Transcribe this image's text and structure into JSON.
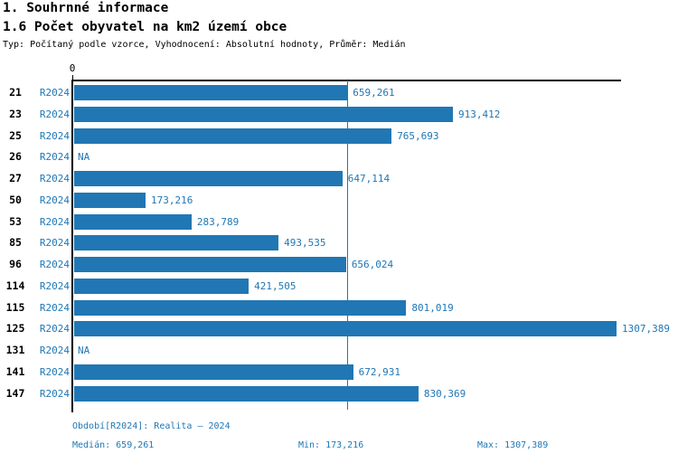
{
  "header": {
    "title_line1": "1. Souhrnné informace",
    "title_line2": "1.6 Počet obyvatel na km2 území obce",
    "subtitle": "Typ: Počítaný podle vzorce, Vyhodnocení: Absolutní hodnoty, Průměr: Medián"
  },
  "chart_data": {
    "type": "bar",
    "orientation": "horizontal",
    "series_label": "R2024",
    "categories": [
      "21",
      "23",
      "25",
      "26",
      "27",
      "50",
      "53",
      "85",
      "96",
      "114",
      "115",
      "125",
      "131",
      "141",
      "147"
    ],
    "values": [
      659.261,
      913.412,
      765.693,
      null,
      647.114,
      173.216,
      283.789,
      493.535,
      656.024,
      421.505,
      801.019,
      1307.389,
      null,
      672.931,
      830.369
    ],
    "value_labels": [
      "659,261",
      "913,412",
      "765,693",
      "NA",
      "647,114",
      "173,216",
      "283,789",
      "493,535",
      "656,024",
      "421,505",
      "801,019",
      "1307,389",
      "NA",
      "672,931",
      "830,369"
    ],
    "na_label": "NA",
    "axis": {
      "zero_label": "0",
      "xmin": 0,
      "xmax": 1307.389
    },
    "median_value": 659.261,
    "grid": false,
    "legend_position": "none",
    "bar_color": "#2077b4",
    "median_line_color": "#1f77b4",
    "label_color": "#1f77b4",
    "axis_color": "#000000"
  },
  "footer": {
    "period": "Období[R2024]: Realita – 2024",
    "median": "Medián: 659,261",
    "min": "Min: 173,216",
    "max": "Max: 1307,389"
  }
}
